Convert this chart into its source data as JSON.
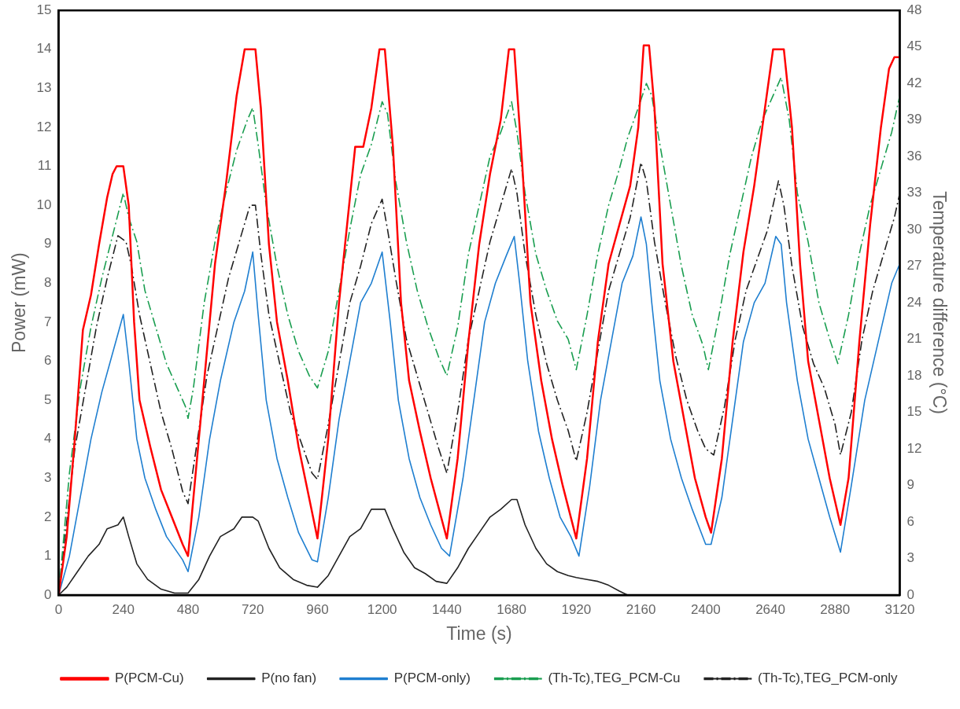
{
  "chart_data": {
    "type": "line",
    "xlabel": "Time (s)",
    "ylabel": "Power (mW)",
    "y2label": "Temperature difference (°C)",
    "xlim": [
      0,
      3120
    ],
    "xticks": [
      0,
      240,
      480,
      720,
      960,
      1200,
      1440,
      1680,
      1920,
      2160,
      2400,
      2640,
      2880,
      3120
    ],
    "ylim": [
      0,
      15
    ],
    "yticks": [
      0,
      1,
      2,
      3,
      4,
      5,
      6,
      7,
      8,
      9,
      10,
      11,
      12,
      13,
      14,
      15
    ],
    "y2lim": [
      0,
      48
    ],
    "y2ticks": [
      0,
      3,
      6,
      9,
      12,
      15,
      18,
      21,
      24,
      27,
      30,
      33,
      36,
      39,
      42,
      45,
      48
    ],
    "grid": false,
    "legend": "bottom",
    "marker": "none",
    "series": [
      {
        "name": "P(PCM-Cu)",
        "color": "#ff0000",
        "line_style": "solid",
        "x": [
          0,
          30,
          60,
          90,
          120,
          150,
          180,
          200,
          215,
          240,
          260,
          280,
          300,
          340,
          380,
          420,
          460,
          480,
          500,
          540,
          580,
          620,
          660,
          690,
          730,
          750,
          780,
          810,
          850,
          890,
          920,
          960,
          1000,
          1040,
          1070,
          1100,
          1130,
          1160,
          1190,
          1210,
          1240,
          1270,
          1300,
          1340,
          1380,
          1440,
          1480,
          1520,
          1560,
          1600,
          1640,
          1670,
          1690,
          1720,
          1750,
          1790,
          1830,
          1870,
          1920,
          1960,
          2000,
          2040,
          2080,
          2120,
          2150,
          2170,
          2190,
          2210,
          2240,
          2280,
          2320,
          2360,
          2400,
          2420,
          2460,
          2500,
          2540,
          2580,
          2620,
          2650,
          2690,
          2720,
          2750,
          2780,
          2820,
          2860,
          2880,
          2900,
          2930,
          2970,
          3010,
          3050,
          3080,
          3100,
          3120
        ],
        "values": [
          0,
          1.5,
          4,
          6.8,
          7.7,
          9,
          10.2,
          10.8,
          11,
          11,
          10,
          7,
          5,
          3.8,
          2.7,
          2,
          1.3,
          1,
          2.5,
          5.5,
          8.5,
          10.5,
          12.8,
          14,
          14,
          12.5,
          9,
          7,
          5.5,
          3.8,
          2.8,
          1.45,
          4,
          7.5,
          9.5,
          11.5,
          11.5,
          12.5,
          14,
          14,
          11.5,
          7.5,
          5.5,
          4.2,
          3,
          1.45,
          3.5,
          6.5,
          9,
          10.8,
          12.2,
          14,
          14,
          11,
          7.5,
          5.5,
          4,
          2.8,
          1.45,
          3.5,
          6.5,
          8.5,
          9.5,
          10.5,
          12,
          14.1,
          14.1,
          12.5,
          8.5,
          6,
          4.5,
          3,
          2,
          1.6,
          3.5,
          6.5,
          8.8,
          10.5,
          12.5,
          14,
          14,
          12,
          8.5,
          6,
          4.5,
          3,
          2.4,
          1.8,
          3,
          6.5,
          9.5,
          12,
          13.5,
          13.8,
          13.8
        ]
      },
      {
        "name": "P(no fan)",
        "color": "#222222",
        "line_style": "solid",
        "x": [
          0,
          30,
          70,
          110,
          150,
          180,
          220,
          240,
          260,
          290,
          330,
          380,
          430,
          480,
          520,
          560,
          600,
          650,
          680,
          720,
          740,
          780,
          820,
          870,
          920,
          960,
          1000,
          1040,
          1080,
          1120,
          1160,
          1210,
          1240,
          1280,
          1320,
          1360,
          1400,
          1440,
          1480,
          1520,
          1560,
          1600,
          1640,
          1680,
          1700,
          1730,
          1770,
          1810,
          1850,
          1890,
          1920,
          1960,
          2000,
          2040,
          2080,
          2110
        ],
        "values": [
          0,
          0.2,
          0.6,
          1,
          1.3,
          1.7,
          1.8,
          2,
          1.5,
          0.8,
          0.4,
          0.15,
          0.05,
          0.05,
          0.4,
          1,
          1.5,
          1.7,
          2,
          2,
          1.9,
          1.2,
          0.7,
          0.4,
          0.25,
          0.2,
          0.5,
          1,
          1.5,
          1.7,
          2.2,
          2.2,
          1.7,
          1.1,
          0.7,
          0.55,
          0.35,
          0.3,
          0.7,
          1.2,
          1.6,
          2,
          2.2,
          2.45,
          2.45,
          1.8,
          1.2,
          0.8,
          0.6,
          0.5,
          0.45,
          0.4,
          0.35,
          0.25,
          0.1,
          0
        ]
      },
      {
        "name": "P(PCM-only)",
        "color": "#1f7fd0",
        "line_style": "solid",
        "x": [
          0,
          40,
          80,
          120,
          160,
          200,
          240,
          260,
          290,
          320,
          360,
          400,
          460,
          480,
          520,
          560,
          600,
          650,
          690,
          720,
          740,
          770,
          810,
          850,
          890,
          940,
          960,
          1000,
          1040,
          1080,
          1120,
          1160,
          1200,
          1230,
          1260,
          1300,
          1340,
          1380,
          1420,
          1450,
          1500,
          1540,
          1580,
          1620,
          1660,
          1690,
          1710,
          1740,
          1780,
          1820,
          1860,
          1900,
          1930,
          1970,
          2010,
          2050,
          2090,
          2130,
          2160,
          2180,
          2200,
          2230,
          2270,
          2310,
          2350,
          2400,
          2420,
          2460,
          2500,
          2540,
          2580,
          2620,
          2660,
          2680,
          2700,
          2740,
          2780,
          2820,
          2860,
          2900,
          2940,
          2990,
          3040,
          3090,
          3120
        ],
        "values": [
          0,
          1,
          2.5,
          4,
          5.2,
          6.2,
          7.2,
          6,
          4,
          3,
          2.2,
          1.5,
          0.9,
          0.6,
          2,
          4,
          5.5,
          7,
          7.8,
          8.8,
          7.2,
          5,
          3.5,
          2.5,
          1.6,
          0.9,
          0.85,
          2.5,
          4.5,
          6,
          7.5,
          8,
          8.8,
          7,
          5,
          3.5,
          2.5,
          1.8,
          1.2,
          1,
          3,
          5,
          7,
          8,
          8.7,
          9.2,
          8,
          6,
          4.2,
          3,
          2,
          1.5,
          1,
          2.8,
          5,
          6.5,
          8,
          8.7,
          9.7,
          9,
          7.5,
          5.5,
          4,
          3,
          2.2,
          1.3,
          1.3,
          2.5,
          4.5,
          6.5,
          7.5,
          8,
          9.2,
          9,
          7.5,
          5.5,
          4,
          3,
          2,
          1.1,
          2.8,
          5,
          6.5,
          8,
          8.5
        ]
      },
      {
        "name": "(Th-Tc),TEG_PCM-Cu",
        "color": "#1a9e50",
        "line_style": "dashed",
        "axis": "y2",
        "x": [
          0,
          20,
          40,
          80,
          120,
          160,
          200,
          240,
          260,
          290,
          320,
          360,
          400,
          440,
          470,
          480,
          500,
          540,
          580,
          620,
          660,
          700,
          720,
          740,
          770,
          810,
          850,
          890,
          930,
          960,
          1000,
          1040,
          1080,
          1120,
          1160,
          1200,
          1220,
          1250,
          1290,
          1330,
          1370,
          1410,
          1440,
          1480,
          1520,
          1560,
          1600,
          1640,
          1680,
          1700,
          1730,
          1770,
          1810,
          1850,
          1890,
          1920,
          1960,
          2000,
          2040,
          2080,
          2110,
          2150,
          2180,
          2200,
          2230,
          2270,
          2310,
          2350,
          2390,
          2410,
          2450,
          2490,
          2530,
          2570,
          2610,
          2650,
          2680,
          2710,
          2740,
          2780,
          2820,
          2860,
          2890,
          2930,
          2970,
          3010,
          3050,
          3090,
          3120
        ],
        "values": [
          0,
          5,
          10,
          17,
          22,
          26,
          29.5,
          33,
          31,
          29,
          25,
          22,
          19,
          17,
          15.5,
          14.5,
          17,
          24,
          29,
          33,
          36.5,
          39,
          40,
          37,
          32,
          27,
          23,
          20,
          18,
          17,
          20,
          25,
          30,
          34.5,
          37,
          40.5,
          39.5,
          34,
          29,
          25,
          22,
          19.5,
          18,
          22,
          28,
          32,
          36,
          38,
          40.5,
          38,
          33,
          28,
          25,
          22.5,
          21,
          18.5,
          23,
          28,
          32,
          35,
          37.5,
          40,
          42,
          41,
          37,
          32,
          27,
          23,
          20.5,
          18.5,
          23,
          28,
          32,
          36,
          39,
          41,
          42.5,
          39,
          33,
          29,
          24,
          21,
          19,
          23,
          28,
          32,
          35,
          38,
          41
        ]
      },
      {
        "name": "(Th-Tc),TEG_PCM-only",
        "color": "#222222",
        "line_style": "dashed",
        "axis": "y2",
        "x": [
          0,
          30,
          60,
          100,
          140,
          180,
          220,
          250,
          270,
          300,
          340,
          380,
          420,
          460,
          480,
          510,
          550,
          590,
          630,
          670,
          710,
          730,
          750,
          780,
          820,
          860,
          900,
          940,
          960,
          1000,
          1040,
          1080,
          1120,
          1160,
          1200,
          1220,
          1250,
          1290,
          1330,
          1370,
          1410,
          1440,
          1480,
          1520,
          1560,
          1600,
          1640,
          1680,
          1700,
          1730,
          1770,
          1810,
          1850,
          1890,
          1920,
          1960,
          2000,
          2040,
          2080,
          2120,
          2160,
          2180,
          2210,
          2250,
          2290,
          2330,
          2370,
          2400,
          2430,
          2470,
          2510,
          2550,
          2590,
          2630,
          2670,
          2690,
          2720,
          2760,
          2800,
          2840,
          2880,
          2900,
          2940,
          2980,
          3020,
          3060,
          3100,
          3120
        ],
        "values": [
          0,
          6,
          12,
          17,
          22,
          26,
          29.5,
          29,
          27,
          23,
          19,
          15,
          12,
          8.5,
          7.5,
          12,
          18,
          22,
          26,
          29,
          32,
          32,
          28,
          23,
          19,
          15,
          12.5,
          10,
          9.5,
          14,
          19,
          24,
          27,
          30.5,
          32.5,
          30,
          26,
          21,
          18,
          15,
          12,
          10,
          15,
          21,
          25,
          29,
          32,
          35,
          33,
          28,
          23,
          19,
          16,
          13.5,
          11,
          15,
          20,
          25,
          28,
          31,
          35.5,
          34,
          29,
          24,
          19.5,
          16,
          13.5,
          12,
          11.5,
          15.5,
          21,
          25,
          27.5,
          30,
          34,
          32,
          27,
          22,
          19,
          17,
          14,
          11.5,
          15,
          21,
          25,
          28,
          31,
          33
        ]
      }
    ]
  }
}
